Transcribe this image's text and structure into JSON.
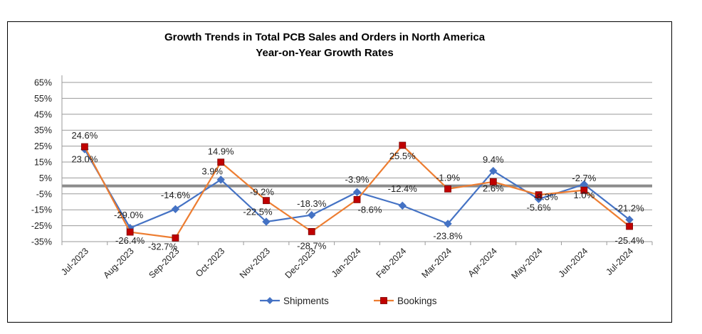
{
  "chart_data": {
    "type": "line",
    "title": "Growth Trends in Total PCB Sales and Orders in North America",
    "subtitle": "Year-on-Year Growth Rates",
    "categories": [
      "Jul-2023",
      "Aug-2023",
      "Sep-2023",
      "Oct-2023",
      "Nov-2023",
      "Dec-2023",
      "Jan-2024",
      "Feb-2024",
      "Mar-2024",
      "Apr-2024",
      "May-2024",
      "Jun-2024",
      "Jul-2024"
    ],
    "yticks": [
      "65%",
      "55%",
      "45%",
      "35%",
      "25%",
      "15%",
      "5%",
      "-5%",
      "-15%",
      "-25%",
      "-35%"
    ],
    "ylim": [
      -35,
      65
    ],
    "grid": true,
    "legend_position": "bottom",
    "series": [
      {
        "name": "Shipments",
        "color": "#4472C4",
        "marker": "diamond",
        "values": [
          23.0,
          -26.4,
          -14.6,
          3.9,
          -22.5,
          -18.3,
          -3.9,
          -12.4,
          -23.8,
          9.4,
          -8.3,
          1.0,
          -21.2
        ],
        "labels": [
          "23.0%",
          "-26.4%",
          "-14.6%",
          "3.9%",
          "-22.5%",
          "-18.3%",
          "-3.9%",
          "-12.4%",
          "-23.8%",
          "9.4%",
          "-8.3%",
          "1.0%",
          "-21.2%"
        ]
      },
      {
        "name": "Bookings",
        "color": "#ED7D31",
        "marker_color": "#C00000",
        "marker": "square",
        "values": [
          24.6,
          -29.0,
          -32.7,
          14.9,
          -9.2,
          -28.7,
          -8.6,
          25.5,
          -1.9,
          2.6,
          -5.6,
          -2.7,
          -25.4
        ],
        "labels": [
          "24.6%",
          "-29.0%",
          "-32.7%",
          "14.9%",
          "-9.2%",
          "-28.7%",
          "-8.6%",
          "25.5%",
          "-1.9%",
          "2.6%",
          "-5.6%",
          "-2.7%",
          "-25.4%"
        ]
      }
    ]
  }
}
